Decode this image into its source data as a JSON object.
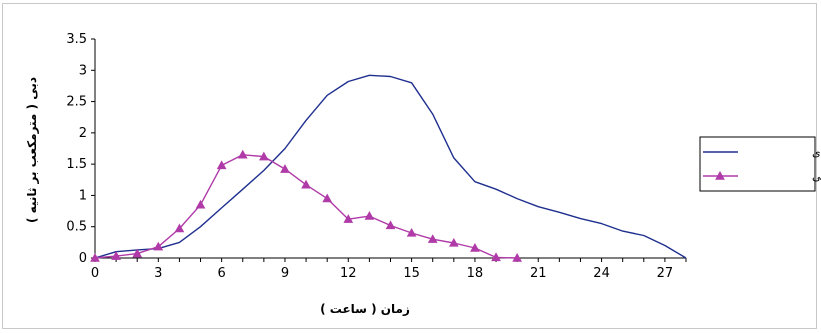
{
  "chart_data": {
    "type": "line",
    "xlabel": "زمان ( ساعت )",
    "ylabel": "دبی ( مترمکعب بر ثانیه )",
    "xlim": [
      0,
      28
    ],
    "ylim": [
      0,
      3.5
    ],
    "x_ticks": [
      "0",
      "3",
      "6",
      "9",
      "12",
      "15",
      "18",
      "21",
      "24",
      "27"
    ],
    "y_ticks": [
      "0",
      "0.5",
      "1",
      "1.5",
      "2",
      "2.5",
      "3",
      "3.5"
    ],
    "grid": false,
    "legend_position": "right",
    "series": [
      {
        "name": "مشاهده ای",
        "color": "#1f2f8f",
        "marker": "none",
        "x": [
          0,
          1,
          2,
          3,
          4,
          5,
          6,
          7,
          8,
          9,
          10,
          11,
          12,
          13,
          14,
          15,
          16,
          17,
          18,
          19,
          20,
          21,
          22,
          23,
          24,
          25,
          26,
          27,
          28
        ],
        "y": [
          0,
          0.1,
          0.13,
          0.15,
          0.25,
          0.5,
          0.8,
          1.1,
          1.4,
          1.75,
          2.2,
          2.6,
          2.82,
          2.92,
          2.9,
          2.8,
          2.3,
          1.6,
          1.22,
          1.1,
          0.95,
          0.82,
          0.73,
          0.63,
          0.55,
          0.43,
          0.36,
          0.2,
          0
        ]
      },
      {
        "name": "تخمینی",
        "color": "#b03aa8",
        "marker": "triangle",
        "x": [
          0,
          1,
          2,
          3,
          4,
          5,
          6,
          7,
          8,
          9,
          10,
          11,
          12,
          13,
          14,
          15,
          16,
          17,
          18,
          19,
          20
        ],
        "y": [
          0,
          0.03,
          0.07,
          0.18,
          0.47,
          0.85,
          1.48,
          1.65,
          1.62,
          1.42,
          1.17,
          0.95,
          0.62,
          0.67,
          0.52,
          0.4,
          0.3,
          0.24,
          0.16,
          0.01,
          0
        ]
      }
    ]
  }
}
